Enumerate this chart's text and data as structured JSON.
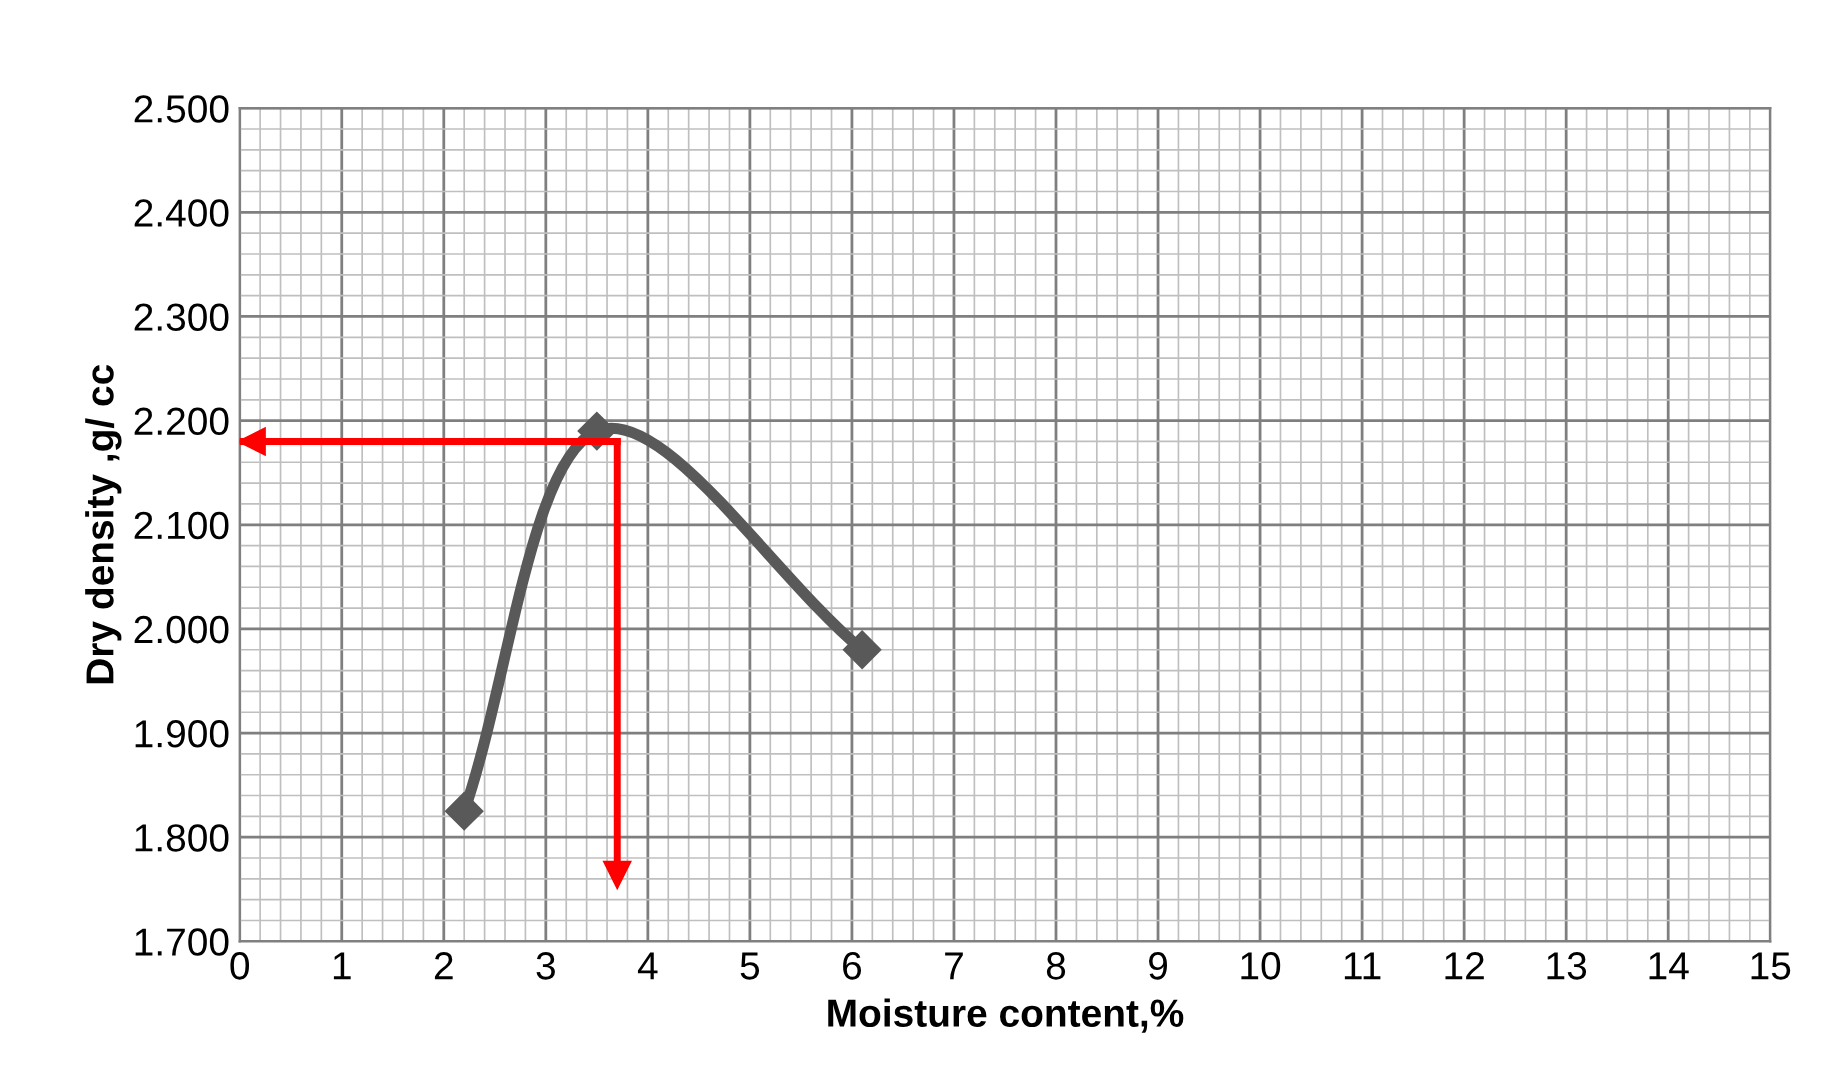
{
  "chart_data": {
    "type": "line",
    "xlabel": "Moisture content,%",
    "ylabel": "Dry density ,g/ cc",
    "x": [
      2.2,
      3.5,
      6.1
    ],
    "series": [
      {
        "color": "#595959",
        "values": [
          1.825,
          2.19,
          1.98
        ]
      }
    ],
    "marker": "diamond",
    "line_style": "solid",
    "xlim": [
      0,
      15
    ],
    "xticks": [
      0,
      1,
      2,
      3,
      4,
      5,
      6,
      7,
      8,
      9,
      10,
      11,
      12,
      13,
      14,
      15
    ],
    "ylim": [
      1.7,
      2.5
    ],
    "yticks": [
      {
        "value": 1.7,
        "label": "1.700"
      },
      {
        "value": 1.8,
        "label": "1.800"
      },
      {
        "value": 1.9,
        "label": "1.900"
      },
      {
        "value": 2.0,
        "label": "2.000"
      },
      {
        "value": 2.1,
        "label": "2.100"
      },
      {
        "value": 2.2,
        "label": "2.200"
      },
      {
        "value": 2.3,
        "label": "2.300"
      },
      {
        "value": 2.4,
        "label": "2.400"
      },
      {
        "value": 2.5,
        "label": "2.500"
      }
    ],
    "grid": true,
    "ref_lines": [
      {
        "axis": "y",
        "value": 2.18,
        "color": "#ff0000"
      },
      {
        "axis": "x",
        "value": 3.7,
        "color": "#ff0000"
      }
    ]
  }
}
